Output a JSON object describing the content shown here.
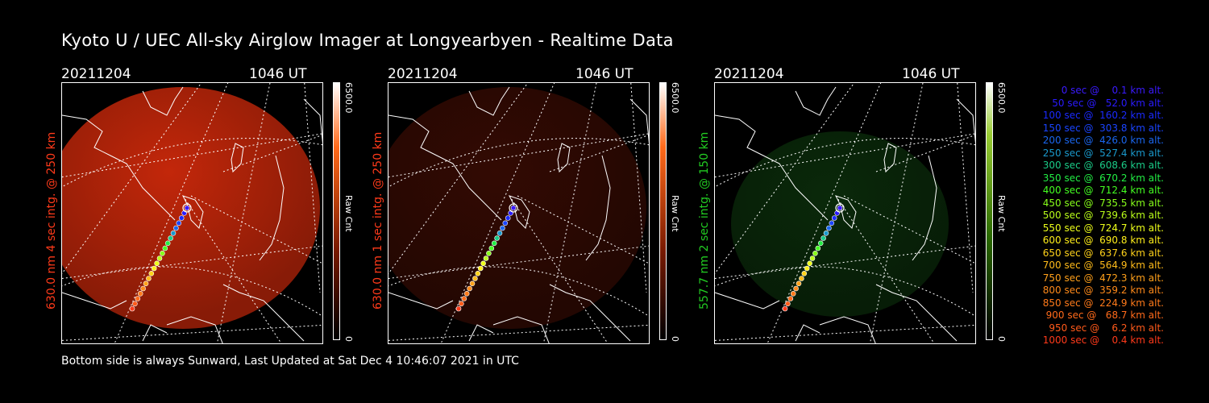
{
  "title": "Kyoto U / UEC All-sky Airglow Imager at Longyearbyen - Realtime Data",
  "footer": "Bottom side is always Sunward, Last Updated at Sat Dec  4 10:46:07 2021 in UTC",
  "colors": {
    "background": "#000000",
    "red_emission": "#cc2a00",
    "green_emission": "#1a7a1a",
    "label_red": "#ff3a1a",
    "label_green": "#22cc22"
  },
  "panels": [
    {
      "date": "20211204",
      "time": "1046 UT",
      "side_label": "630.0 nm  4 sec intg. @ 250 km",
      "colorbar_max": "6500.0",
      "colorbar_min": "0",
      "colorbar_label": "Raw Cnt",
      "emission": "red",
      "brightness": 0.85
    },
    {
      "date": "20211204",
      "time": "1046 UT",
      "side_label": "630.0 nm  1 sec intg. @ 250 km",
      "colorbar_max": "6500.0",
      "colorbar_min": "0",
      "colorbar_label": "Raw Cnt",
      "emission": "red",
      "brightness": 0.22
    },
    {
      "date": "20211204",
      "time": "1046 UT",
      "side_label": "557.7 nm  2 sec intg. @ 150 km",
      "colorbar_max": "6500.0",
      "colorbar_min": "0",
      "colorbar_label": "Raw Cnt",
      "emission": "green",
      "brightness": 0.3
    }
  ],
  "legend": [
    {
      "text": "0 sec @    0.1 km alt.",
      "color": "#3a1aff"
    },
    {
      "text": "50 sec @   52.0 km alt.",
      "color": "#2a1aff"
    },
    {
      "text": "100 sec @  160.2 km alt.",
      "color": "#1a2aff"
    },
    {
      "text": "150 sec @  303.8 km alt.",
      "color": "#1a44ff"
    },
    {
      "text": "200 sec @  426.0 km alt.",
      "color": "#1a66ee"
    },
    {
      "text": "250 sec @  527.4 km alt.",
      "color": "#1a99cc"
    },
    {
      "text": "300 sec @  608.6 km alt.",
      "color": "#1acc88"
    },
    {
      "text": "350 sec @  670.2 km alt.",
      "color": "#22ee44"
    },
    {
      "text": "400 sec @  712.4 km alt.",
      "color": "#44ff22"
    },
    {
      "text": "450 sec @  735.5 km alt.",
      "color": "#88ff1a"
    },
    {
      "text": "500 sec @  739.6 km alt.",
      "color": "#bbff1a"
    },
    {
      "text": "550 sec @  724.7 km alt.",
      "color": "#eeff1a"
    },
    {
      "text": "600 sec @  690.8 km alt.",
      "color": "#ffee1a"
    },
    {
      "text": "650 sec @  637.6 km alt.",
      "color": "#ffd21a"
    },
    {
      "text": "700 sec @  564.9 km alt.",
      "color": "#ffbb1a"
    },
    {
      "text": "750 sec @  472.3 km alt.",
      "color": "#ffa01a"
    },
    {
      "text": "800 sec @  359.2 km alt.",
      "color": "#ff8a1a"
    },
    {
      "text": "850 sec @  224.9 km alt.",
      "color": "#ff7a1a"
    },
    {
      "text": "900 sec @   68.7 km alt.",
      "color": "#ff6a1a"
    },
    {
      "text": "950 sec @    6.2 km alt.",
      "color": "#ff5a1a"
    },
    {
      "text": "1000 sec @    0.4 km alt.",
      "color": "#ff3a1a"
    }
  ]
}
